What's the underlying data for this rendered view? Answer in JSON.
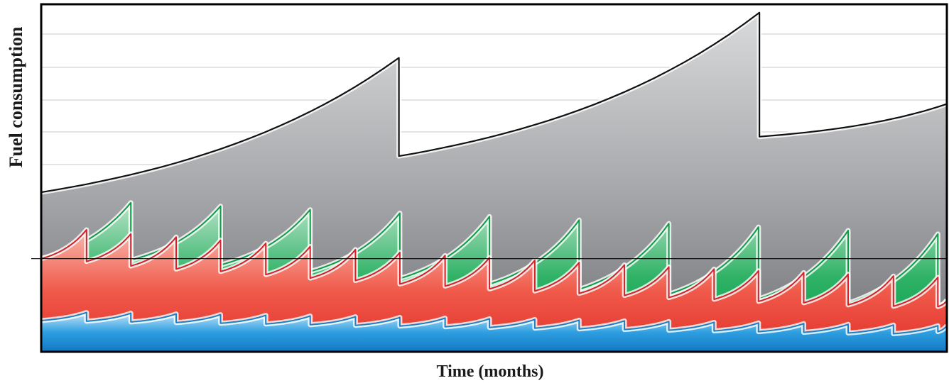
{
  "chart_data": {
    "type": "area",
    "xlabel": "Time (months)",
    "ylabel": "Fuel consumption",
    "x_ticks_labeled": false,
    "y_ticks_labeled": false,
    "grid": true,
    "legend": "none",
    "x_range": [
      0,
      1
    ],
    "y_range": [
      0,
      1
    ],
    "reference_line_y": 0.268,
    "series": [
      {
        "color": "#9a9c9f",
        "stroke": "#111111",
        "cycles": [
          {
            "x_start": 0.0,
            "x_end": 0.395,
            "y_start": 0.459,
            "y_end": 0.846
          },
          {
            "x_start": 0.395,
            "x_end": 0.793,
            "y_start": 0.563,
            "y_end": 0.976
          },
          {
            "x_start": 0.793,
            "x_end": 1.0,
            "y_start": 0.619,
            "y_end": 0.713
          }
        ]
      },
      {
        "color": "#12a150",
        "stroke": "#0e9a46",
        "cycles": [
          {
            "x_start": 0.0,
            "x_end": 0.099,
            "y_start": 0.268,
            "y_end": 0.429
          },
          {
            "x_start": 0.099,
            "x_end": 0.198,
            "y_start": 0.264,
            "y_end": 0.419
          },
          {
            "x_start": 0.198,
            "x_end": 0.297,
            "y_start": 0.25,
            "y_end": 0.409
          },
          {
            "x_start": 0.297,
            "x_end": 0.396,
            "y_start": 0.231,
            "y_end": 0.399
          },
          {
            "x_start": 0.396,
            "x_end": 0.495,
            "y_start": 0.211,
            "y_end": 0.389
          },
          {
            "x_start": 0.495,
            "x_end": 0.594,
            "y_start": 0.195,
            "y_end": 0.379
          },
          {
            "x_start": 0.594,
            "x_end": 0.693,
            "y_start": 0.18,
            "y_end": 0.369
          },
          {
            "x_start": 0.693,
            "x_end": 0.792,
            "y_start": 0.166,
            "y_end": 0.359
          },
          {
            "x_start": 0.792,
            "x_end": 0.891,
            "y_start": 0.152,
            "y_end": 0.349
          },
          {
            "x_start": 0.891,
            "x_end": 0.99,
            "y_start": 0.14,
            "y_end": 0.339
          },
          {
            "x_start": 0.99,
            "x_end": 1.0,
            "y_start": 0.13,
            "y_end": 0.149
          }
        ]
      },
      {
        "color": "#ee3a33",
        "stroke": "#d61f26",
        "cycles": [
          {
            "x_start": 0.0,
            "x_end": 0.05,
            "y_start": 0.268,
            "y_end": 0.351
          },
          {
            "x_start": 0.05,
            "x_end": 0.099,
            "y_start": 0.26,
            "y_end": 0.339
          },
          {
            "x_start": 0.099,
            "x_end": 0.149,
            "y_start": 0.247,
            "y_end": 0.33
          },
          {
            "x_start": 0.149,
            "x_end": 0.198,
            "y_start": 0.238,
            "y_end": 0.321
          },
          {
            "x_start": 0.198,
            "x_end": 0.248,
            "y_start": 0.231,
            "y_end": 0.312
          },
          {
            "x_start": 0.248,
            "x_end": 0.297,
            "y_start": 0.222,
            "y_end": 0.303
          },
          {
            "x_start": 0.297,
            "x_end": 0.347,
            "y_start": 0.212,
            "y_end": 0.294
          },
          {
            "x_start": 0.347,
            "x_end": 0.396,
            "y_start": 0.205,
            "y_end": 0.286
          },
          {
            "x_start": 0.396,
            "x_end": 0.446,
            "y_start": 0.195,
            "y_end": 0.277
          },
          {
            "x_start": 0.446,
            "x_end": 0.495,
            "y_start": 0.189,
            "y_end": 0.271
          },
          {
            "x_start": 0.495,
            "x_end": 0.545,
            "y_start": 0.181,
            "y_end": 0.263
          },
          {
            "x_start": 0.545,
            "x_end": 0.594,
            "y_start": 0.175,
            "y_end": 0.257
          },
          {
            "x_start": 0.594,
            "x_end": 0.644,
            "y_start": 0.168,
            "y_end": 0.25
          },
          {
            "x_start": 0.644,
            "x_end": 0.693,
            "y_start": 0.162,
            "y_end": 0.244
          },
          {
            "x_start": 0.693,
            "x_end": 0.743,
            "y_start": 0.156,
            "y_end": 0.238
          },
          {
            "x_start": 0.743,
            "x_end": 0.792,
            "y_start": 0.151,
            "y_end": 0.233
          },
          {
            "x_start": 0.792,
            "x_end": 0.842,
            "y_start": 0.145,
            "y_end": 0.228
          },
          {
            "x_start": 0.842,
            "x_end": 0.891,
            "y_start": 0.141,
            "y_end": 0.223
          },
          {
            "x_start": 0.891,
            "x_end": 0.941,
            "y_start": 0.135,
            "y_end": 0.218
          },
          {
            "x_start": 0.941,
            "x_end": 0.99,
            "y_start": 0.131,
            "y_end": 0.214
          },
          {
            "x_start": 0.99,
            "x_end": 1.0,
            "y_start": 0.13,
            "y_end": 0.147
          }
        ]
      },
      {
        "color": "#1b8fd6",
        "stroke": "#1c7fc4",
        "cycles": [
          {
            "x_start": 0.0,
            "x_end": 0.05,
            "y_start": 0.09,
            "y_end": 0.113
          },
          {
            "x_start": 0.05,
            "x_end": 0.099,
            "y_start": 0.088,
            "y_end": 0.111
          },
          {
            "x_start": 0.099,
            "x_end": 0.149,
            "y_start": 0.086,
            "y_end": 0.109
          },
          {
            "x_start": 0.149,
            "x_end": 0.198,
            "y_start": 0.084,
            "y_end": 0.107
          },
          {
            "x_start": 0.198,
            "x_end": 0.248,
            "y_start": 0.082,
            "y_end": 0.105
          },
          {
            "x_start": 0.248,
            "x_end": 0.297,
            "y_start": 0.08,
            "y_end": 0.103
          },
          {
            "x_start": 0.297,
            "x_end": 0.347,
            "y_start": 0.078,
            "y_end": 0.101
          },
          {
            "x_start": 0.347,
            "x_end": 0.396,
            "y_start": 0.076,
            "y_end": 0.099
          },
          {
            "x_start": 0.396,
            "x_end": 0.446,
            "y_start": 0.074,
            "y_end": 0.097
          },
          {
            "x_start": 0.446,
            "x_end": 0.495,
            "y_start": 0.072,
            "y_end": 0.095
          },
          {
            "x_start": 0.495,
            "x_end": 0.545,
            "y_start": 0.07,
            "y_end": 0.093
          },
          {
            "x_start": 0.545,
            "x_end": 0.594,
            "y_start": 0.068,
            "y_end": 0.091
          },
          {
            "x_start": 0.594,
            "x_end": 0.644,
            "y_start": 0.066,
            "y_end": 0.089
          },
          {
            "x_start": 0.644,
            "x_end": 0.693,
            "y_start": 0.064,
            "y_end": 0.087
          },
          {
            "x_start": 0.693,
            "x_end": 0.743,
            "y_start": 0.062,
            "y_end": 0.085
          },
          {
            "x_start": 0.743,
            "x_end": 0.792,
            "y_start": 0.06,
            "y_end": 0.083
          },
          {
            "x_start": 0.792,
            "x_end": 0.842,
            "y_start": 0.058,
            "y_end": 0.081
          },
          {
            "x_start": 0.842,
            "x_end": 0.891,
            "y_start": 0.056,
            "y_end": 0.079
          },
          {
            "x_start": 0.891,
            "x_end": 0.941,
            "y_start": 0.054,
            "y_end": 0.077
          },
          {
            "x_start": 0.941,
            "x_end": 0.99,
            "y_start": 0.052,
            "y_end": 0.075
          },
          {
            "x_start": 0.99,
            "x_end": 1.0,
            "y_start": 0.058,
            "y_end": 0.075
          }
        ]
      }
    ]
  }
}
